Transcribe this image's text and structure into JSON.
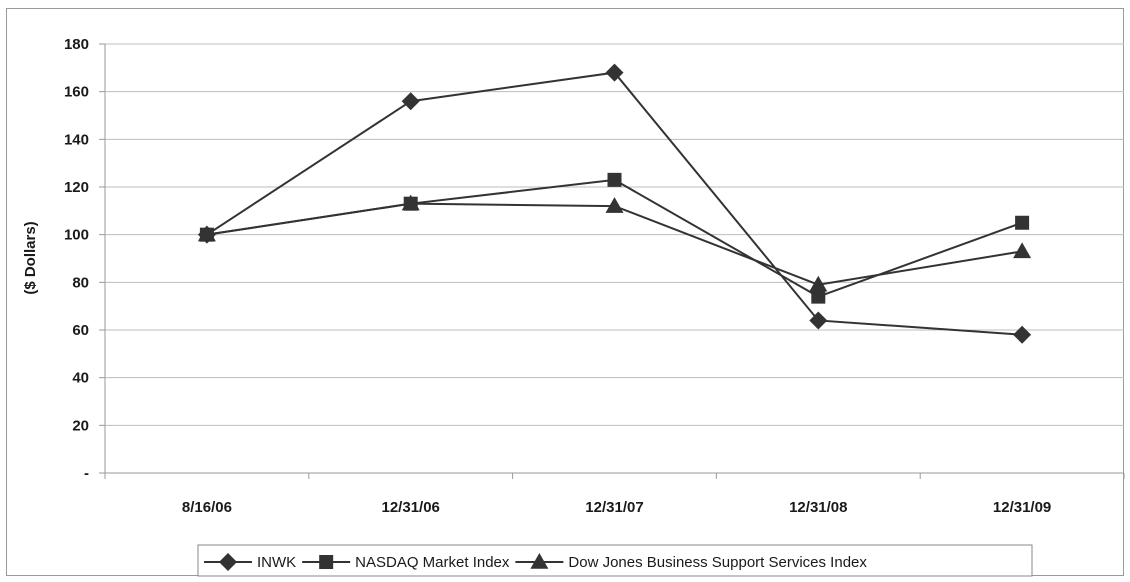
{
  "chart_data": {
    "type": "line",
    "title": "",
    "xlabel": "",
    "ylabel": "($ Dollars)",
    "categories": [
      "8/16/06",
      "12/31/06",
      "12/31/07",
      "12/31/08",
      "12/31/09"
    ],
    "ylim": [
      0,
      180
    ],
    "yticks": [
      0,
      20,
      40,
      60,
      80,
      100,
      120,
      140,
      160,
      180
    ],
    "ytick_labels": [
      "-",
      "20",
      "40",
      "60",
      "80",
      "100",
      "120",
      "140",
      "160",
      "180"
    ],
    "grid": true,
    "legend_position": "bottom",
    "series": [
      {
        "name": "INWK",
        "marker": "diamond",
        "values": [
          100,
          156,
          168,
          64,
          58
        ]
      },
      {
        "name": "NASDAQ Market Index",
        "marker": "square",
        "values": [
          100,
          113,
          123,
          74,
          105
        ]
      },
      {
        "name": "Dow Jones Business Support Services Index",
        "marker": "triangle",
        "values": [
          100,
          113,
          112,
          79,
          93
        ]
      }
    ],
    "colors": {
      "line": "#333333",
      "grid": "#bdbdbd",
      "axis": "#9a9a9a"
    }
  }
}
